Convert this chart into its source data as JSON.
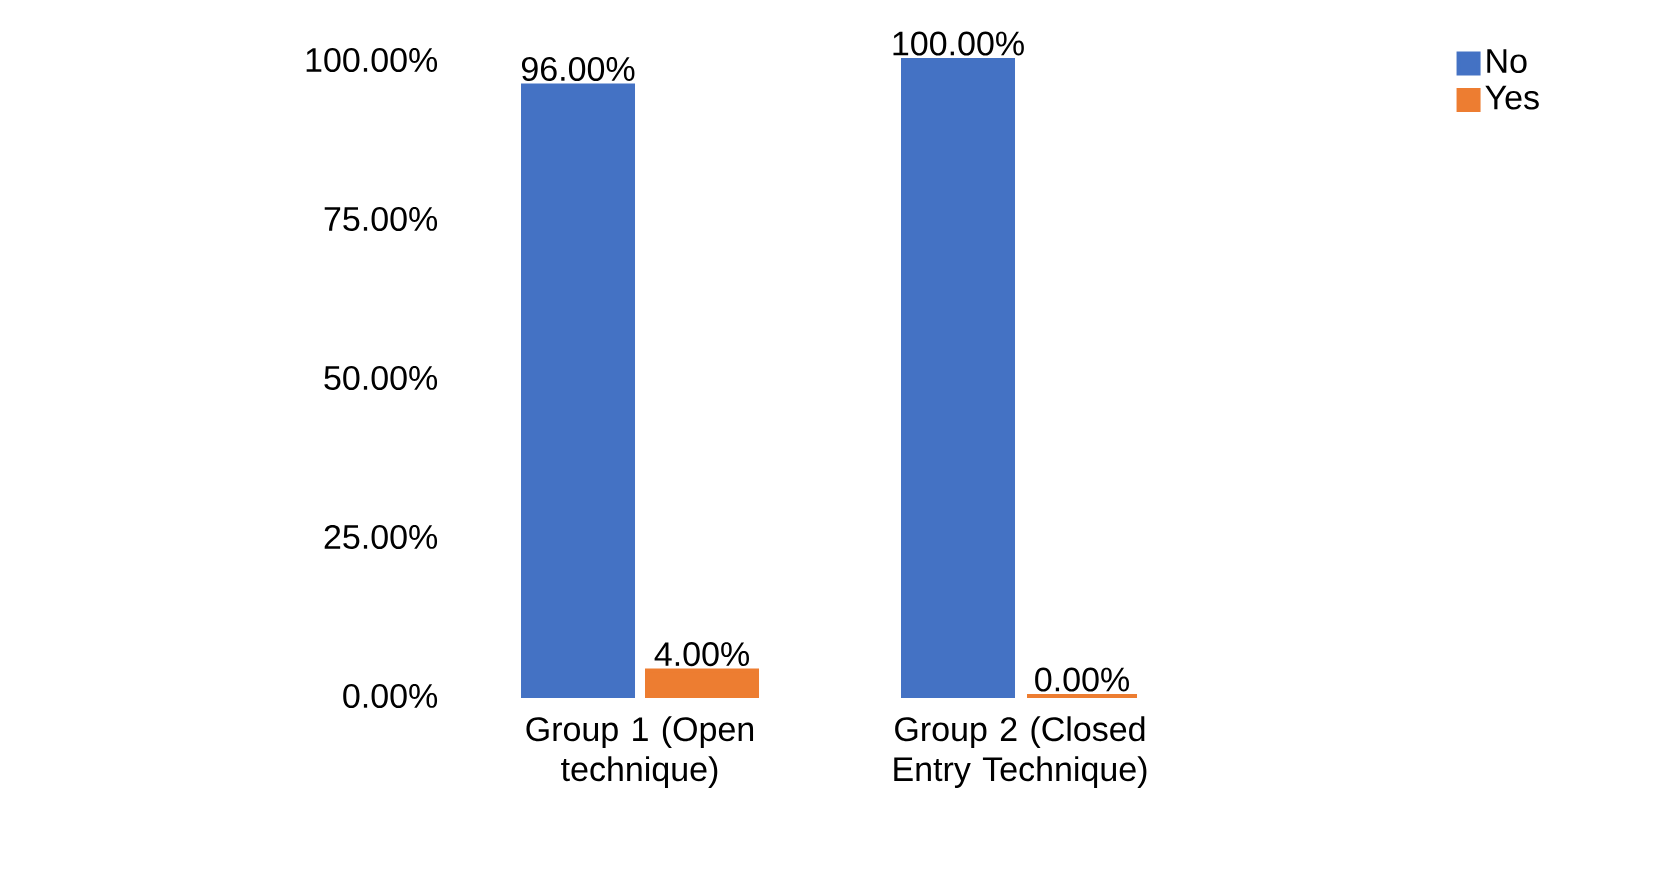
{
  "chart_data": {
    "type": "bar",
    "categories": [
      "Group 1 (Open technique)",
      "Group 2 (Closed Entry Technique)"
    ],
    "series": [
      {
        "name": "No",
        "color": "#4472c4",
        "values": [
          96,
          100
        ],
        "value_labels": [
          "96.00%",
          "100.00%"
        ]
      },
      {
        "name": "Yes",
        "color": "#ed7d31",
        "values": [
          4,
          0
        ],
        "value_labels": [
          "4.00%",
          "0.00%"
        ]
      }
    ],
    "ylim": [
      0,
      100
    ],
    "yticks": [
      {
        "value": 0,
        "label": "0.00%"
      },
      {
        "value": 25,
        "label": "25.00%"
      },
      {
        "value": 50,
        "label": "50.00%"
      },
      {
        "value": 75,
        "label": "75.00%"
      },
      {
        "value": 100,
        "label": "100.00%"
      }
    ],
    "legend": "top right"
  }
}
